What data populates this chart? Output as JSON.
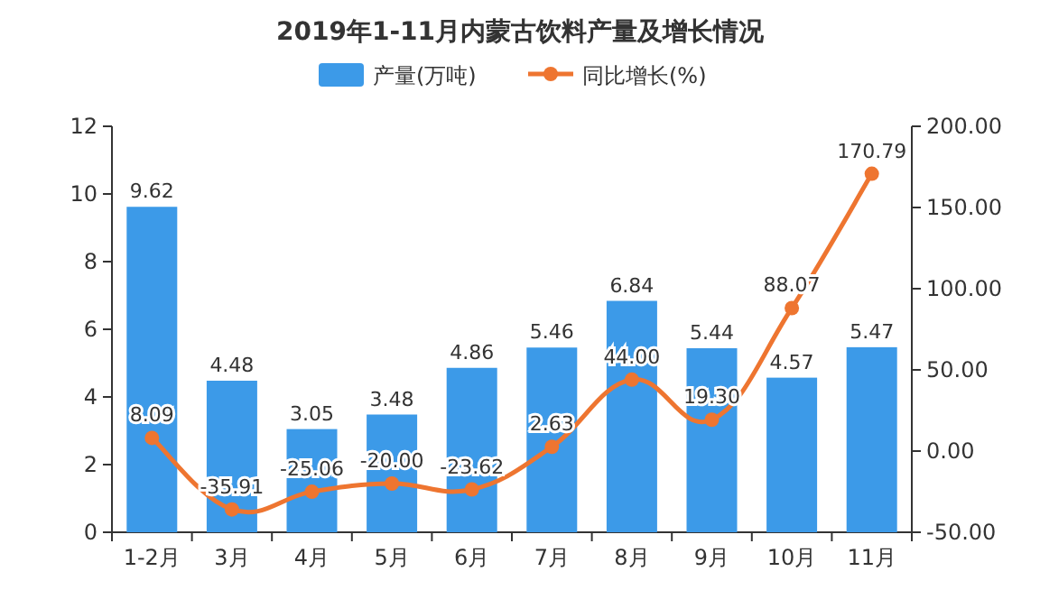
{
  "chart_data": {
    "type": "bar",
    "title": "2019年1-11月内蒙古饮料产量及增长情况",
    "categories": [
      "1-2月",
      "3月",
      "4月",
      "5月",
      "6月",
      "7月",
      "8月",
      "9月",
      "10月",
      "11月"
    ],
    "series": [
      {
        "name": "产量(万吨)",
        "color": "#3c9ae8",
        "values": [
          9.62,
          4.48,
          3.05,
          3.48,
          4.86,
          5.46,
          6.84,
          5.44,
          4.57,
          5.47
        ],
        "value_labels": [
          "9.62",
          "4.48",
          "3.05",
          "3.48",
          "4.86",
          "5.46",
          "6.84",
          "5.44",
          "4.57",
          "5.47"
        ]
      },
      {
        "name": "同比增长(%)",
        "type": "line",
        "axis": "y2",
        "color": "#ee7530",
        "marker": "circle",
        "values": [
          8.09,
          -35.91,
          -25.06,
          -20.0,
          -23.62,
          2.63,
          44.0,
          19.3,
          88.07,
          170.79
        ],
        "value_labels": [
          "8.09",
          "-35.91",
          "-25.06",
          "-20.00",
          "-23.62",
          "2.63",
          "44.00",
          "19.30",
          "88.07",
          "170.79"
        ]
      }
    ],
    "ylim": [
      0,
      12
    ],
    "yticks": [
      0,
      2,
      4,
      6,
      8,
      10,
      12
    ],
    "y2lim": [
      -50,
      200
    ],
    "y2ticks": [
      {
        "value": -50,
        "label": "-50.00"
      },
      {
        "value": 0,
        "label": "0.00"
      },
      {
        "value": 50,
        "label": "50.00"
      },
      {
        "value": 100,
        "label": "100.00"
      },
      {
        "value": 150,
        "label": "150.00"
      },
      {
        "value": 200,
        "label": "200.00"
      }
    ],
    "legend": "top",
    "grid": false
  }
}
